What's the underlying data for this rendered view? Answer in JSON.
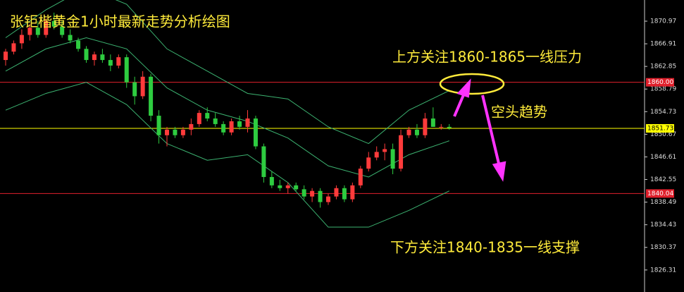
{
  "chart_data": {
    "type": "candlestick",
    "title": "张钜楷黄金1小时最新走势分析绘图",
    "annotations": [
      "上方关注1860-1865一线压力",
      "空头趋势",
      "下方关注1840-1835一线支撑"
    ],
    "open": [
      1864,
      1865.5,
      1867,
      1868.5,
      1869.8,
      1868.5,
      1871,
      1870,
      1868.5,
      1867.5,
      1866,
      1864,
      1865,
      1864,
      1863,
      1864.5,
      1860,
      1857.5,
      1861,
      1854,
      1850.5,
      1851.5,
      1850.5,
      1851.5,
      1852.5,
      1854.5,
      1853.5,
      1852.5,
      1851,
      1853,
      1852,
      1853.5,
      1848.5,
      1843,
      1841.5,
      1841,
      1841.5,
      1840.8,
      1839.5,
      1840.5,
      1838.5,
      1839.5,
      1841,
      1839,
      1841.5,
      1844.5,
      1846.5,
      1847.5,
      1848,
      1844.5,
      1850.5,
      1851.5,
      1850.5,
      1853.5,
      1852,
      1852
    ],
    "high": [
      1866,
      1867.5,
      1869.5,
      1870.5,
      1871,
      1871.5,
      1872.5,
      1871,
      1869.5,
      1868,
      1866.5,
      1865.5,
      1866,
      1865,
      1865,
      1865,
      1861,
      1862,
      1861.5,
      1855,
      1852,
      1852,
      1852,
      1853.5,
      1855,
      1855.5,
      1854.5,
      1853,
      1853.5,
      1854,
      1855,
      1854,
      1849,
      1844,
      1842.5,
      1842,
      1842,
      1841.5,
      1841,
      1841,
      1840,
      1841.5,
      1841.5,
      1842,
      1845,
      1847.5,
      1848.5,
      1849,
      1849,
      1851.5,
      1852,
      1852.5,
      1854.5,
      1855.5,
      1852.5,
      1852.5
    ],
    "low": [
      1863,
      1865,
      1866,
      1867.5,
      1868,
      1868,
      1869.5,
      1868,
      1867,
      1865.5,
      1863.5,
      1863,
      1863.5,
      1862,
      1862.5,
      1859,
      1856,
      1857,
      1853,
      1849,
      1848.5,
      1850,
      1850,
      1850.5,
      1852,
      1853,
      1852,
      1850.5,
      1850.5,
      1851.5,
      1851,
      1848,
      1842,
      1841,
      1840.5,
      1840,
      1840.5,
      1839,
      1838.5,
      1837.5,
      1838,
      1839,
      1838.5,
      1838.5,
      1841,
      1844,
      1846,
      1846,
      1843.5,
      1844,
      1850,
      1850,
      1850,
      1852,
      1851.5,
      1851.5
    ],
    "close": [
      1865.5,
      1867,
      1868.5,
      1869.8,
      1868.5,
      1871,
      1870,
      1868.5,
      1867.5,
      1866,
      1864,
      1865,
      1864,
      1863,
      1864.5,
      1860,
      1857.5,
      1861,
      1854,
      1850.5,
      1851.5,
      1850.5,
      1851.5,
      1852.5,
      1854.5,
      1853.5,
      1852.5,
      1851,
      1853,
      1852,
      1853.5,
      1848.5,
      1843,
      1841.5,
      1841,
      1841.5,
      1840.8,
      1839.5,
      1840.5,
      1838.5,
      1839.5,
      1841,
      1839,
      1841.5,
      1844.5,
      1846.5,
      1847.5,
      1848,
      1844.5,
      1850.5,
      1851.5,
      1850.5,
      1853.5,
      1852,
      1852,
      1851.8
    ],
    "up_color": "#ff3b3b",
    "down_color": "#2ecc40",
    "bands": {
      "x": [
        0,
        5,
        10,
        15,
        20,
        25,
        30,
        35,
        40,
        45,
        50,
        55
      ],
      "color": "#3cb371",
      "series": [
        {
          "values": [
            1868,
            1873,
            1877,
            1874,
            1866,
            1862,
            1858,
            1857,
            1852,
            1849,
            1855,
            1858.5
          ]
        },
        {
          "values": [
            1862,
            1866,
            1868,
            1866,
            1859,
            1855,
            1853,
            1850,
            1845,
            1843,
            1847,
            1849.5
          ]
        },
        {
          "values": [
            1855,
            1858,
            1860,
            1856,
            1849,
            1846,
            1847,
            1842,
            1834,
            1834,
            1837,
            1840.5
          ]
        }
      ]
    },
    "price_lines": [
      {
        "value": 1860,
        "label": "1860.00",
        "color": "#e0202c"
      },
      {
        "value": 1851.73,
        "color": "#ffff00"
      },
      {
        "value": 1840.04,
        "color": "#e0202c"
      }
    ],
    "ylim": [
      1822.36,
      1874.77
    ],
    "yticks": [
      1870.97,
      1866.91,
      1862.85,
      1858.79,
      1854.73,
      1850.67,
      1846.61,
      1842.55,
      1838.49,
      1834.43,
      1830.37,
      1826.31
    ]
  }
}
